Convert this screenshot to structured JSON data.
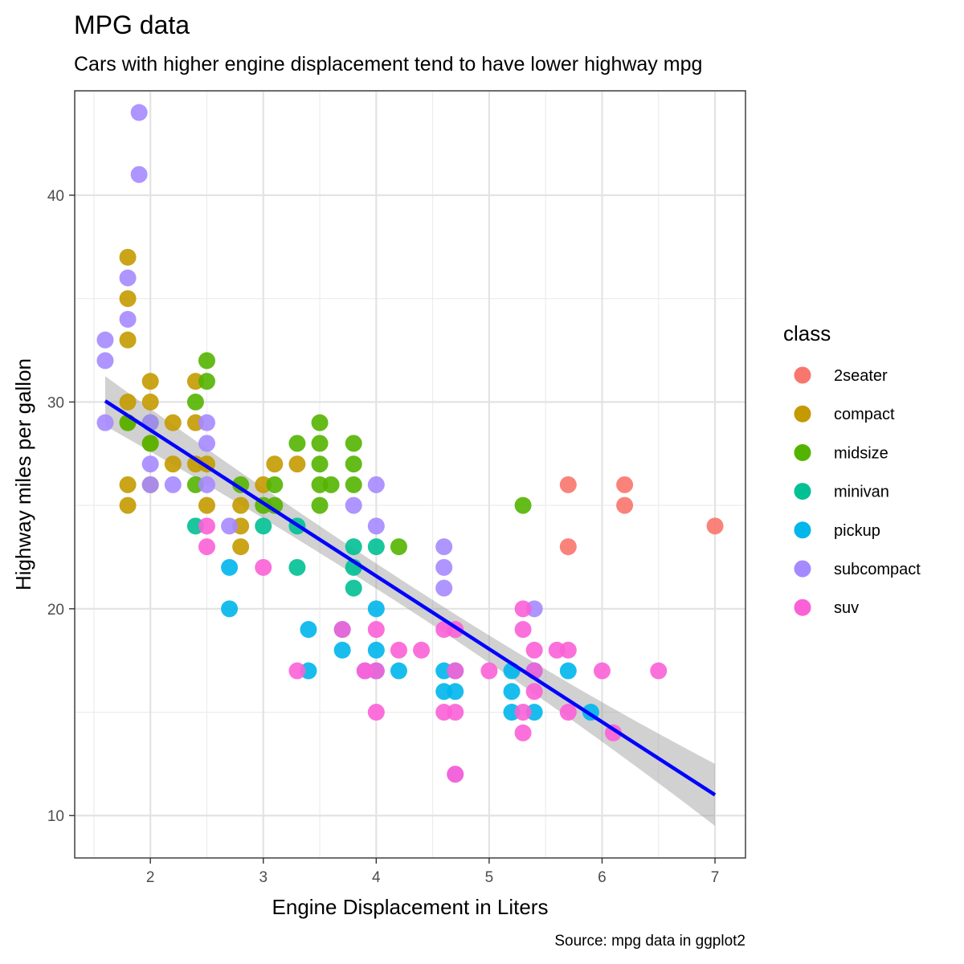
{
  "chart_data": {
    "type": "scatter",
    "title": "MPG data",
    "subtitle": "Cars with higher engine displacement tend to have lower highway mpg",
    "xlabel": "Engine Displacement in Liters",
    "ylabel": "Highway miles per gallon",
    "caption": "Source: mpg data in ggplot2",
    "xlim": [
      1.33,
      7.27
    ],
    "ylim": [
      7.95,
      45.05
    ],
    "x_ticks": [
      2,
      3,
      4,
      5,
      6,
      7
    ],
    "y_ticks": [
      10,
      20,
      30,
      40
    ],
    "grid": true,
    "legend": {
      "title": "class",
      "position": "right",
      "entries": [
        {
          "label": "2seater",
          "color": "#F8766D"
        },
        {
          "label": "compact",
          "color": "#C49A00"
        },
        {
          "label": "midsize",
          "color": "#53B400"
        },
        {
          "label": "minivan",
          "color": "#00C094"
        },
        {
          "label": "pickup",
          "color": "#00B6EB"
        },
        {
          "label": "subcompact",
          "color": "#A58AFF"
        },
        {
          "label": "suv",
          "color": "#FB61D7"
        }
      ]
    },
    "trend": {
      "method": "linear",
      "color": "#0000FF",
      "x": [
        1.6,
        7.0
      ],
      "y": [
        30.05,
        11.0
      ],
      "band_halfwidth": [
        1.2,
        0.6,
        1.5
      ]
    },
    "series": [
      {
        "name": "2seater",
        "color": "#F8766D",
        "points": [
          [
            5.7,
            26
          ],
          [
            5.7,
            23
          ],
          [
            6.2,
            26
          ],
          [
            6.2,
            25
          ],
          [
            7.0,
            24
          ]
        ]
      },
      {
        "name": "compact",
        "color": "#C49A00",
        "points": [
          [
            1.8,
            37
          ],
          [
            1.8,
            35
          ],
          [
            1.8,
            33
          ],
          [
            1.8,
            30
          ],
          [
            1.8,
            29
          ],
          [
            1.8,
            26
          ],
          [
            1.8,
            25
          ],
          [
            2.0,
            31
          ],
          [
            2.0,
            30
          ],
          [
            2.0,
            28
          ],
          [
            2.0,
            26
          ],
          [
            2.2,
            29
          ],
          [
            2.2,
            27
          ],
          [
            2.4,
            31
          ],
          [
            2.4,
            29
          ],
          [
            2.4,
            27
          ],
          [
            2.5,
            27
          ],
          [
            2.5,
            25
          ],
          [
            2.8,
            25
          ],
          [
            2.8,
            24
          ],
          [
            2.8,
            23
          ],
          [
            3.0,
            26
          ],
          [
            3.1,
            27
          ],
          [
            3.3,
            27
          ]
        ]
      },
      {
        "name": "midsize",
        "color": "#53B400",
        "points": [
          [
            1.8,
            29
          ],
          [
            2.0,
            29
          ],
          [
            2.0,
            28
          ],
          [
            2.4,
            30
          ],
          [
            2.4,
            26
          ],
          [
            2.5,
            32
          ],
          [
            2.5,
            31
          ],
          [
            2.8,
            26
          ],
          [
            3.0,
            25
          ],
          [
            3.1,
            26
          ],
          [
            3.1,
            25
          ],
          [
            3.3,
            28
          ],
          [
            3.5,
            29
          ],
          [
            3.5,
            28
          ],
          [
            3.5,
            27
          ],
          [
            3.5,
            26
          ],
          [
            3.5,
            25
          ],
          [
            3.6,
            26
          ],
          [
            3.8,
            28
          ],
          [
            3.8,
            27
          ],
          [
            3.8,
            26
          ],
          [
            4.2,
            23
          ],
          [
            5.3,
            25
          ]
        ]
      },
      {
        "name": "minivan",
        "color": "#00C094",
        "points": [
          [
            2.4,
            24
          ],
          [
            3.0,
            24
          ],
          [
            3.3,
            24
          ],
          [
            3.3,
            22
          ],
          [
            3.8,
            23
          ],
          [
            3.8,
            22
          ],
          [
            3.8,
            21
          ],
          [
            4.0,
            23
          ]
        ]
      },
      {
        "name": "pickup",
        "color": "#00B6EB",
        "points": [
          [
            2.7,
            22
          ],
          [
            2.7,
            20
          ],
          [
            3.4,
            19
          ],
          [
            3.4,
            17
          ],
          [
            3.7,
            19
          ],
          [
            3.7,
            18
          ],
          [
            4.0,
            20
          ],
          [
            4.0,
            18
          ],
          [
            4.0,
            17
          ],
          [
            4.2,
            17
          ],
          [
            4.6,
            17
          ],
          [
            4.6,
            16
          ],
          [
            4.7,
            17
          ],
          [
            4.7,
            16
          ],
          [
            5.2,
            17
          ],
          [
            5.2,
            16
          ],
          [
            5.2,
            15
          ],
          [
            5.4,
            17
          ],
          [
            5.4,
            15
          ],
          [
            5.7,
            17
          ],
          [
            5.9,
            15
          ]
        ]
      },
      {
        "name": "subcompact",
        "color": "#A58AFF",
        "points": [
          [
            1.6,
            33
          ],
          [
            1.6,
            32
          ],
          [
            1.6,
            29
          ],
          [
            1.8,
            36
          ],
          [
            1.8,
            34
          ],
          [
            1.9,
            44
          ],
          [
            1.9,
            41
          ],
          [
            2.0,
            29
          ],
          [
            2.0,
            27
          ],
          [
            2.0,
            26
          ],
          [
            2.2,
            26
          ],
          [
            2.5,
            29
          ],
          [
            2.5,
            28
          ],
          [
            2.5,
            26
          ],
          [
            2.7,
            24
          ],
          [
            3.8,
            25
          ],
          [
            3.9,
            17
          ],
          [
            4.0,
            26
          ],
          [
            4.0,
            24
          ],
          [
            4.6,
            23
          ],
          [
            4.6,
            22
          ],
          [
            4.6,
            21
          ],
          [
            4.7,
            12
          ],
          [
            5.4,
            20
          ]
        ]
      },
      {
        "name": "suv",
        "color": "#FB61D7",
        "points": [
          [
            2.5,
            24
          ],
          [
            2.5,
            23
          ],
          [
            3.0,
            22
          ],
          [
            3.3,
            17
          ],
          [
            3.7,
            19
          ],
          [
            3.9,
            17
          ],
          [
            4.0,
            19
          ],
          [
            4.0,
            17
          ],
          [
            4.0,
            15
          ],
          [
            4.2,
            18
          ],
          [
            4.4,
            18
          ],
          [
            4.6,
            19
          ],
          [
            4.6,
            15
          ],
          [
            4.7,
            19
          ],
          [
            4.7,
            17
          ],
          [
            4.7,
            15
          ],
          [
            4.7,
            12
          ],
          [
            5.0,
            17
          ],
          [
            5.3,
            20
          ],
          [
            5.3,
            19
          ],
          [
            5.3,
            15
          ],
          [
            5.3,
            14
          ],
          [
            5.4,
            18
          ],
          [
            5.4,
            17
          ],
          [
            5.4,
            16
          ],
          [
            5.6,
            18
          ],
          [
            5.7,
            18
          ],
          [
            5.7,
            15
          ],
          [
            6.0,
            17
          ],
          [
            6.1,
            14
          ],
          [
            6.5,
            17
          ]
        ]
      }
    ]
  }
}
